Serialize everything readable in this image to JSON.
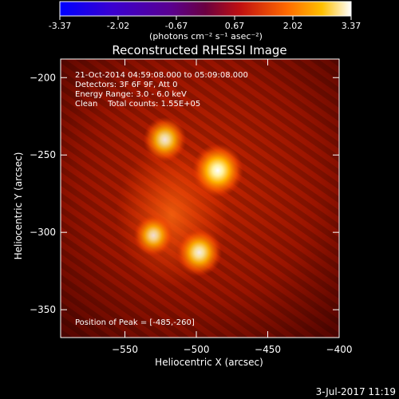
{
  "colorbar": {
    "ticks": [
      "-3.37",
      "-2.02",
      "-0.67",
      "0.67",
      "2.02",
      "3.37"
    ],
    "unit_label": "(photons cm⁻² s⁻¹ asec⁻²)"
  },
  "chart_data": {
    "type": "heatmap",
    "title": "Reconstructed RHESSI Image",
    "xlabel": "Heliocentric X (arcsec)",
    "ylabel": "Heliocentric Y (arcsec)",
    "xlim": [
      -595,
      -400
    ],
    "ylim": [
      -368,
      -188
    ],
    "x_ticks": [
      -550,
      -500,
      -450,
      -400
    ],
    "y_ticks": [
      -200,
      -250,
      -300,
      -350
    ],
    "color_range": [
      -3.37,
      3.37
    ],
    "sources": [
      {
        "x": -485,
        "y": -260,
        "strength": 1.0
      },
      {
        "x": -522,
        "y": -240,
        "strength": 0.72
      },
      {
        "x": -498,
        "y": -313,
        "strength": 0.8
      },
      {
        "x": -530,
        "y": -302,
        "strength": 0.6
      }
    ],
    "annotations": [
      "21-Oct-2014 04:59:08.000 to 05:09:08.000",
      "Detectors: 3F 6F 9F, Att 0",
      "Energy Range: 3.0 - 6.0 keV",
      "Clean    Total counts: 1.55E+05"
    ],
    "peak_label": "Position of Peak = [-485,-260]"
  },
  "footer": {
    "timestamp": "3-Jul-2017 11:19"
  }
}
